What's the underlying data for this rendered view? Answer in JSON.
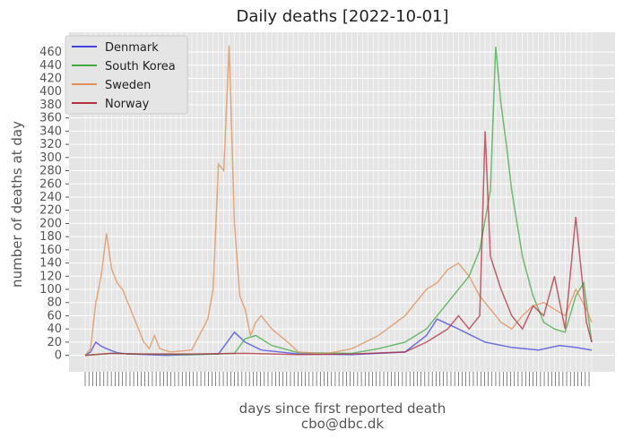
{
  "chart_data": {
    "type": "line",
    "title": "Daily deaths [2022-10-01]",
    "xlabel": "days since first reported death",
    "credit": "cbo@dbc.dk",
    "ylabel": "number of deaths at day",
    "yticks": [
      0,
      20,
      40,
      60,
      80,
      100,
      120,
      140,
      160,
      180,
      200,
      220,
      240,
      260,
      280,
      300,
      320,
      340,
      360,
      380,
      400,
      420,
      440,
      460
    ],
    "xlim": [
      0,
      950
    ],
    "ylim": [
      -25,
      490
    ],
    "grid": true,
    "legend_position": "top-left",
    "series": [
      {
        "name": "Denmark",
        "color": "#4444dd",
        "x": [
          0,
          10,
          20,
          30,
          40,
          60,
          80,
          150,
          250,
          280,
          300,
          330,
          400,
          500,
          600,
          640,
          660,
          700,
          750,
          800,
          850,
          890,
          920,
          950
        ],
        "values": [
          0,
          5,
          20,
          14,
          10,
          4,
          2,
          0,
          2,
          35,
          20,
          8,
          2,
          1,
          5,
          30,
          55,
          40,
          20,
          12,
          8,
          15,
          12,
          8
        ]
      },
      {
        "name": "South Korea",
        "color": "#44aa44",
        "x": [
          0,
          50,
          100,
          200,
          280,
          300,
          320,
          350,
          400,
          500,
          550,
          600,
          640,
          680,
          720,
          740,
          760,
          770,
          780,
          790,
          800,
          820,
          840,
          860,
          880,
          900,
          920,
          935,
          950
        ],
        "values": [
          0,
          3,
          2,
          1,
          3,
          25,
          30,
          15,
          4,
          3,
          10,
          20,
          40,
          80,
          120,
          160,
          250,
          468,
          380,
          320,
          250,
          150,
          90,
          50,
          40,
          35,
          90,
          110,
          20
        ]
      },
      {
        "name": "Sweden",
        "color": "#e0905a",
        "x": [
          0,
          10,
          20,
          30,
          40,
          50,
          60,
          70,
          80,
          90,
          100,
          110,
          120,
          130,
          140,
          160,
          200,
          230,
          240,
          250,
          260,
          270,
          280,
          290,
          300,
          310,
          320,
          330,
          350,
          380,
          400,
          450,
          500,
          550,
          600,
          640,
          660,
          680,
          700,
          720,
          740,
          760,
          780,
          800,
          820,
          840,
          860,
          880,
          900,
          920,
          940,
          950
        ],
        "values": [
          0,
          10,
          80,
          120,
          185,
          130,
          110,
          100,
          80,
          60,
          40,
          20,
          10,
          30,
          10,
          5,
          8,
          55,
          100,
          290,
          280,
          470,
          200,
          90,
          70,
          30,
          50,
          60,
          40,
          20,
          5,
          2,
          10,
          30,
          60,
          100,
          110,
          130,
          140,
          120,
          90,
          70,
          50,
          40,
          60,
          75,
          80,
          70,
          60,
          100,
          70,
          50
        ]
      },
      {
        "name": "Norway",
        "color": "#b03040",
        "x": [
          0,
          50,
          100,
          200,
          300,
          400,
          500,
          600,
          640,
          680,
          700,
          720,
          740,
          750,
          760,
          780,
          800,
          820,
          840,
          860,
          880,
          900,
          920,
          940,
          950
        ],
        "values": [
          0,
          3,
          2,
          2,
          3,
          1,
          2,
          5,
          20,
          40,
          60,
          40,
          60,
          340,
          150,
          100,
          60,
          40,
          75,
          60,
          120,
          40,
          210,
          50,
          20
        ]
      }
    ]
  }
}
